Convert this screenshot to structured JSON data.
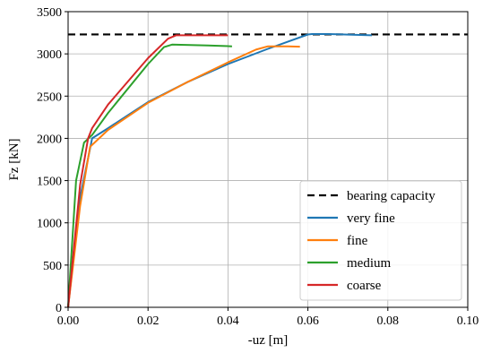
{
  "chart_data": {
    "type": "line",
    "title": "",
    "xlabel": "-uz [m]",
    "ylabel": "Fz [kN]",
    "xlim": [
      0.0,
      0.1
    ],
    "ylim": [
      0,
      3500
    ],
    "x_ticks": [
      "0.00",
      "0.02",
      "0.04",
      "0.06",
      "0.08",
      "0.10"
    ],
    "y_ticks": [
      "0",
      "500",
      "1000",
      "1500",
      "2000",
      "2500",
      "3000",
      "3500"
    ],
    "grid": true,
    "legend_position": "bottom-right",
    "reference_line": {
      "name": "bearing capacity",
      "y": 3230,
      "style": "dashed",
      "color": "#000000"
    },
    "series": [
      {
        "name": "very fine",
        "color": "#1f77b4",
        "x": [
          0.0,
          0.003,
          0.006,
          0.01,
          0.02,
          0.03,
          0.04,
          0.05,
          0.06,
          0.061,
          0.065,
          0.07,
          0.076
        ],
        "y": [
          0,
          1300,
          2000,
          2120,
          2430,
          2670,
          2880,
          3060,
          3230,
          3235,
          3235,
          3228,
          3220
        ]
      },
      {
        "name": "fine",
        "color": "#ff7f0e",
        "x": [
          0.0,
          0.003,
          0.0055,
          0.01,
          0.02,
          0.03,
          0.04,
          0.047,
          0.05,
          0.055,
          0.058
        ],
        "y": [
          0,
          1200,
          1900,
          2100,
          2420,
          2670,
          2900,
          3050,
          3090,
          3090,
          3085
        ]
      },
      {
        "name": "medium",
        "color": "#2ca02c",
        "x": [
          0.0,
          0.002,
          0.004,
          0.006,
          0.01,
          0.02,
          0.024,
          0.026,
          0.035,
          0.041
        ],
        "y": [
          0,
          1500,
          1950,
          2040,
          2300,
          2880,
          3080,
          3110,
          3100,
          3090
        ]
      },
      {
        "name": "coarse",
        "color": "#d62728",
        "x": [
          0.0,
          0.003,
          0.005,
          0.006,
          0.01,
          0.02,
          0.025,
          0.027,
          0.03,
          0.04
        ],
        "y": [
          0,
          1450,
          2000,
          2120,
          2400,
          2950,
          3180,
          3220,
          3220,
          3220
        ]
      }
    ]
  }
}
